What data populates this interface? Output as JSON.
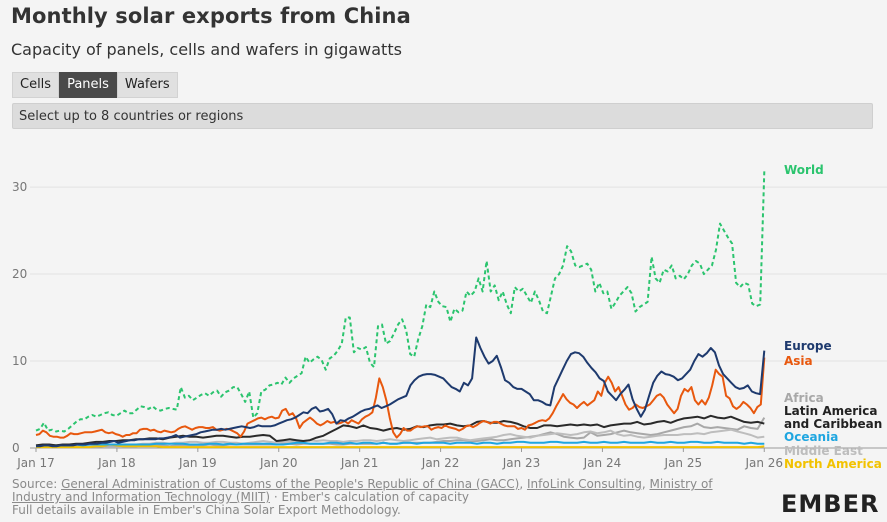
{
  "header": {
    "title": "Monthly solar exports from China",
    "subtitle": "Capacity of panels, cells and wafers in gigawatts"
  },
  "tabs": [
    {
      "label": "Cells",
      "active": false
    },
    {
      "label": "Panels",
      "active": true
    },
    {
      "label": "Wafers",
      "active": false
    }
  ],
  "selector": {
    "placeholder": "Select up to 8 countries or regions"
  },
  "footer": {
    "source_prefix": "Source: ",
    "link1": "General Administration of Customs of the People's Republic of China (GACC)",
    "sep1": ", ",
    "link2": "InfoLink Consulting",
    "sep2": ", ",
    "link3": "Ministry of Industry and Information Technology (MIIT)",
    "source_suffix": " · Ember's calculation of capacity",
    "details": "Full details available in Ember's China Solar Export Methodology.",
    "logo": "EMBER"
  },
  "chart_data": {
    "type": "line",
    "x_start": "Jan 17",
    "x_labels": [
      "Jan 17",
      "Jan 18",
      "Jan 19",
      "Jan 20",
      "Jan 21",
      "Jan 22",
      "Jan 23",
      "Jan 24",
      "Jan 25",
      "Jan 26"
    ],
    "x_label_index": [
      0,
      12,
      24,
      36,
      48,
      60,
      72,
      84,
      96,
      108
    ],
    "y_ticks": [
      0,
      10,
      20,
      30
    ],
    "ylim": [
      0,
      33
    ],
    "series": [
      {
        "name": "World",
        "color": "#2bc46e",
        "dashed": true,
        "label_lines": [
          "World"
        ],
        "values": [
          2.0,
          2.2,
          2.9,
          2.0,
          2.1,
          1.9,
          2.0,
          1.9,
          2.2,
          2.6,
          3.0,
          3.3,
          3.3,
          3.6,
          3.8,
          3.6,
          3.8,
          4.0,
          4.1,
          3.8,
          3.7,
          4.0,
          4.3,
          4.0,
          4.0,
          4.4,
          4.8,
          4.7,
          4.5,
          4.8,
          4.4,
          4.3,
          4.5,
          4.6,
          4.5,
          4.4,
          7.0,
          5.8,
          6.0,
          5.5,
          5.8,
          6.1,
          6.3,
          6.0,
          6.4,
          6.6,
          5.9,
          6.4,
          6.6,
          7.0,
          7.0,
          6.2,
          5.3,
          6.5,
          3.5,
          4.0,
          6.5,
          6.7,
          7.2,
          7.3,
          7.5,
          7.3,
          8.1,
          7.5,
          8.0,
          8.3,
          8.6,
          10.5,
          9.8,
          10.2,
          10.5,
          10.1,
          9.0,
          10.3,
          10.6,
          11.2,
          12.0,
          15.0,
          15.0,
          11.0,
          11.5,
          11.3,
          11.6,
          9.8,
          9.3,
          14.0,
          14.2,
          12.0,
          12.3,
          13.2,
          14.2,
          14.8,
          13.5,
          10.8,
          10.5,
          12.5,
          14.0,
          16.5,
          16.2,
          18.0,
          16.8,
          16.3,
          16.2,
          14.5,
          16.0,
          15.6,
          15.8,
          18.0,
          17.5,
          18.0,
          19.5,
          18.0,
          21.5,
          18.0,
          18.7,
          17.0,
          18.0,
          16.5,
          15.5,
          18.5,
          18.0,
          18.3,
          17.5,
          16.7,
          18.0,
          17.0,
          15.7,
          15.5,
          17.5,
          19.5,
          20.0,
          21.0,
          23.2,
          22.6,
          21.0,
          20.8,
          21.0,
          21.2,
          20.5,
          18.0,
          19.0,
          17.8,
          18.0,
          16.0,
          16.7,
          17.5,
          18.0,
          18.5,
          17.8,
          15.7,
          16.2,
          16.5,
          16.8,
          22.0,
          19.5,
          19.0,
          20.5,
          20.3,
          21.0,
          19.5,
          19.8,
          19.4,
          20.0,
          21.0,
          21.5,
          21.2,
          20.0,
          20.5,
          21.0,
          22.8,
          25.8,
          25.0,
          24.2,
          23.5,
          19.0,
          18.5,
          19.0,
          18.8,
          16.6,
          16.3,
          16.5,
          31.8
        ]
      },
      {
        "name": "Europe",
        "color": "#1e3a6e",
        "dashed": false,
        "label_lines": [
          "Europe"
        ],
        "values": [
          0.2,
          0.2,
          0.3,
          0.3,
          0.2,
          0.2,
          0.3,
          0.3,
          0.3,
          0.3,
          0.4,
          0.4,
          0.4,
          0.5,
          0.5,
          0.5,
          0.6,
          0.6,
          0.7,
          0.8,
          0.6,
          0.7,
          0.8,
          0.9,
          0.9,
          1.0,
          1.0,
          1.0,
          1.0,
          1.0,
          1.1,
          1.1,
          1.2,
          1.3,
          1.5,
          1.2,
          1.3,
          1.4,
          1.5,
          1.6,
          1.8,
          1.9,
          2.0,
          2.1,
          2.1,
          2.2,
          2.1,
          2.2,
          2.3,
          2.4,
          2.5,
          2.4,
          2.3,
          2.4,
          2.6,
          2.5,
          2.5,
          2.5,
          2.6,
          2.8,
          3.0,
          3.2,
          3.3,
          3.5,
          3.8,
          4.1,
          4.0,
          4.5,
          4.7,
          4.2,
          4.3,
          4.5,
          3.9,
          2.8,
          3.2,
          3.1,
          3.4,
          3.6,
          3.9,
          4.2,
          4.4,
          4.5,
          4.7,
          4.9,
          4.6,
          4.8,
          5.0,
          5.3,
          5.6,
          5.8,
          6.0,
          7.2,
          7.8,
          8.2,
          8.4,
          8.5,
          8.5,
          8.4,
          8.2,
          8.0,
          7.5,
          7.0,
          6.8,
          6.5,
          7.5,
          7.2,
          8.0,
          12.7,
          11.5,
          10.5,
          9.7,
          10.0,
          10.6,
          9.3,
          7.8,
          7.5,
          7.0,
          6.8,
          6.8,
          6.5,
          6.2,
          5.5,
          5.5,
          5.3,
          5.0,
          4.9,
          7.0,
          8.0,
          9.0,
          10.0,
          10.8,
          11.0,
          10.9,
          10.5,
          9.8,
          9.2,
          8.7,
          8.0,
          7.7,
          6.5,
          6.0,
          5.5,
          6.2,
          6.7,
          7.3,
          5.6,
          4.5,
          3.6,
          4.4,
          6.0,
          7.5,
          8.3,
          8.8,
          8.5,
          8.4,
          8.2,
          7.8,
          8.0,
          8.5,
          9.0,
          10.0,
          10.8,
          10.5,
          10.9,
          11.5,
          11.0,
          9.5,
          8.5,
          8.0,
          7.5,
          7.0,
          6.8,
          6.9,
          7.2,
          6.5,
          6.3,
          6.2,
          11.2
        ]
      },
      {
        "name": "Asia",
        "color": "#e8580e",
        "dashed": false,
        "label_lines": [
          "Asia"
        ],
        "values": [
          1.5,
          1.6,
          2.0,
          1.8,
          1.4,
          1.3,
          1.3,
          1.2,
          1.2,
          1.4,
          1.7,
          1.6,
          1.6,
          1.7,
          1.8,
          1.8,
          1.8,
          1.9,
          2.0,
          2.1,
          1.8,
          1.7,
          1.8,
          1.6,
          1.5,
          1.3,
          1.5,
          1.5,
          1.7,
          1.7,
          2.1,
          2.2,
          2.2,
          2.0,
          2.1,
          1.9,
          1.8,
          2.0,
          1.9,
          1.8,
          1.9,
          2.2,
          2.4,
          2.5,
          2.3,
          2.1,
          2.3,
          2.4,
          2.4,
          2.3,
          2.3,
          2.4,
          2.1,
          2.0,
          2.1,
          2.2,
          2.1,
          1.9,
          1.7,
          1.3,
          1.9,
          2.8,
          3.0,
          3.2,
          3.4,
          3.5,
          3.3,
          3.5,
          3.6,
          3.4,
          3.5,
          4.3,
          4.5,
          3.8,
          4.0,
          3.4,
          2.3,
          2.9,
          3.2,
          3.5,
          3.2,
          2.8,
          2.6,
          2.8,
          3.1,
          2.9,
          3.0,
          2.8,
          2.9,
          3.1,
          2.8,
          3.2,
          3.0,
          2.8,
          3.3,
          3.6,
          3.8,
          4.1,
          5.8,
          8.0,
          7.0,
          5.5,
          3.5,
          1.8,
          1.2,
          1.6,
          2.3,
          2.0,
          2.0,
          2.3,
          2.5,
          2.4,
          2.5,
          2.5,
          2.1,
          2.3,
          2.4,
          2.3,
          2.6,
          2.4,
          2.3,
          2.2,
          2.0,
          2.2,
          2.5,
          2.6,
          2.4,
          2.6,
          2.9,
          3.1,
          3.0,
          2.8,
          3.0,
          3.0,
          2.8,
          2.6,
          2.5,
          2.5,
          2.5,
          2.2,
          2.3,
          2.1,
          2.6,
          2.7,
          2.9,
          3.1,
          3.2,
          3.1,
          3.4,
          4.0,
          4.8,
          5.5,
          6.2,
          5.6,
          5.2,
          5.0,
          4.6,
          5.0,
          5.3,
          4.9,
          5.2,
          5.5,
          6.5,
          6.0,
          7.5,
          8.2,
          7.5,
          6.5,
          7.0,
          6.0,
          5.0,
          4.4,
          4.6,
          5.0,
          4.7,
          4.6,
          4.8,
          5.0,
          5.5,
          6.0,
          6.2,
          5.8,
          5.0,
          4.5,
          4.0,
          4.5,
          6.0,
          6.8,
          6.5,
          7.0,
          5.5,
          5.0,
          5.5,
          5.0,
          5.8,
          7.2,
          9.0,
          8.5,
          8.2,
          6.0,
          5.7,
          4.8,
          4.5,
          4.8,
          5.3,
          5.0,
          4.6,
          4.0,
          4.7,
          5.0,
          10.4
        ]
      },
      {
        "name": "Africa",
        "color": "#a8a8a8",
        "dashed": false,
        "label_lines": [
          "Africa"
        ],
        "values": [
          0.1,
          0.1,
          0.1,
          0.2,
          0.2,
          0.2,
          0.1,
          0.1,
          0.2,
          0.1,
          0.2,
          0.2,
          0.2,
          0.2,
          0.2,
          0.2,
          0.3,
          0.3,
          0.3,
          0.3,
          0.2,
          0.3,
          0.3,
          0.3,
          0.3,
          0.3,
          0.4,
          0.3,
          0.3,
          0.4,
          0.4,
          0.4,
          0.4,
          0.4,
          0.4,
          0.4,
          0.4,
          0.5,
          0.5,
          0.4,
          0.5,
          0.5,
          0.5,
          0.5,
          0.5,
          0.4,
          0.4,
          0.5,
          0.5,
          0.5,
          0.5,
          0.5,
          0.6,
          0.5,
          0.5,
          0.6,
          0.6,
          0.6,
          0.6,
          0.6,
          0.7,
          0.8,
          0.8,
          0.9,
          0.9,
          0.8,
          0.8,
          0.9,
          1.0,
          0.9,
          0.9,
          1.0,
          1.1,
          1.2,
          1.3,
          1.4,
          1.6,
          1.8,
          1.6,
          1.3,
          1.2,
          1.1,
          1.2,
          1.8,
          1.4,
          1.5,
          1.6,
          1.8,
          2.0,
          1.8,
          1.7,
          1.6,
          1.5,
          1.6,
          1.8,
          2.0,
          2.2,
          2.4,
          2.5,
          2.8,
          2.4,
          2.3,
          2.4,
          2.3,
          2.2,
          2.1,
          2.5,
          2.3,
          2.2,
          3.5
        ]
      },
      {
        "name": "Latin America and Caribbean",
        "color": "#2a2a2a",
        "dashed": false,
        "label_lines": [
          "Latin America",
          "and Caribbean"
        ],
        "values": [
          0.3,
          0.4,
          0.4,
          0.3,
          0.4,
          0.4,
          0.5,
          0.5,
          0.6,
          0.7,
          0.7,
          0.8,
          0.8,
          0.9,
          0.9,
          1.0,
          1.0,
          1.1,
          1.1,
          1.0,
          1.2,
          1.3,
          1.4,
          1.3,
          1.3,
          1.2,
          1.3,
          1.4,
          1.4,
          1.3,
          1.2,
          1.3,
          1.3,
          1.4,
          1.5,
          1.4,
          0.8,
          0.9,
          1.0,
          0.9,
          0.8,
          0.9,
          1.2,
          1.4,
          1.8,
          2.2,
          2.6,
          2.5,
          2.3,
          2.6,
          2.3,
          2.2,
          2.0,
          2.2,
          2.3,
          2.1,
          2.2,
          2.5,
          2.4,
          2.6,
          2.7,
          2.7,
          2.8,
          2.6,
          2.5,
          2.6,
          3.0,
          3.1,
          2.9,
          2.9,
          3.1,
          3.0,
          2.8,
          2.5,
          2.3,
          2.3,
          2.6,
          2.6,
          2.5,
          2.6,
          2.7,
          2.6,
          2.7,
          2.6,
          2.7,
          2.4,
          2.6,
          2.7,
          2.8,
          2.8,
          3.0,
          2.7,
          2.8,
          3.0,
          3.1,
          2.9,
          3.2,
          3.4,
          3.5,
          3.6,
          3.4,
          3.7,
          3.5,
          3.4,
          3.6,
          3.3,
          3.0,
          2.9,
          3.0,
          2.8
        ]
      },
      {
        "name": "Oceania",
        "color": "#1fa6e0",
        "dashed": false,
        "label_lines": [
          "Oceania"
        ],
        "values": [
          0.2,
          0.3,
          0.3,
          0.3,
          0.3,
          0.3,
          0.4,
          0.3,
          0.4,
          0.4,
          0.4,
          0.4,
          0.4,
          0.4,
          0.4,
          0.4,
          0.4,
          0.4,
          0.5,
          0.5,
          0.5,
          0.5,
          0.5,
          0.4,
          0.4,
          0.4,
          0.5,
          0.5,
          0.4,
          0.5,
          0.4,
          0.5,
          0.5,
          0.5,
          0.5,
          0.5,
          0.4,
          0.4,
          0.5,
          0.6,
          0.6,
          0.5,
          0.5,
          0.5,
          0.6,
          0.6,
          0.5,
          0.6,
          0.5,
          0.6,
          0.6,
          0.5,
          0.6,
          0.5,
          0.5,
          0.6,
          0.6,
          0.5,
          0.6,
          0.6,
          0.6,
          0.6,
          0.5,
          0.6,
          0.6,
          0.6,
          0.5,
          0.6,
          0.6,
          0.5,
          0.6,
          0.6,
          0.7,
          0.7,
          0.6,
          0.6,
          0.6,
          0.7,
          0.7,
          0.6,
          0.6,
          0.6,
          0.7,
          0.6,
          0.6,
          0.7,
          0.6,
          0.6,
          0.7,
          0.6,
          0.6,
          0.6,
          0.7,
          0.6,
          0.6,
          0.7,
          0.6,
          0.6,
          0.7,
          0.7,
          0.6,
          0.6,
          0.7,
          0.6,
          0.6,
          0.6,
          0.5,
          0.6,
          0.5,
          0.5
        ]
      },
      {
        "name": "Middle East",
        "color": "#bdbdbd",
        "dashed": false,
        "label_lines": [
          "Middle East"
        ],
        "values": [
          0.3,
          0.3,
          0.3,
          0.3,
          0.3,
          0.3,
          0.3,
          0.3,
          0.3,
          0.3,
          0.3,
          0.3,
          0.3,
          0.4,
          0.4,
          0.4,
          0.5,
          0.5,
          0.6,
          0.6,
          0.5,
          0.6,
          0.6,
          0.7,
          0.7,
          0.6,
          0.6,
          0.7,
          0.7,
          0.6,
          0.6,
          0.5,
          0.6,
          0.7,
          0.8,
          0.7,
          0.6,
          0.7,
          0.7,
          0.8,
          0.8,
          0.9,
          0.8,
          0.9,
          0.8,
          0.8,
          0.7,
          0.8,
          0.8,
          0.9,
          0.9,
          0.8,
          0.9,
          1.0,
          0.9,
          0.8,
          0.9,
          1.0,
          1.1,
          1.2,
          1.0,
          1.1,
          1.2,
          1.2,
          1.0,
          0.9,
          1.0,
          1.1,
          1.2,
          1.3,
          1.5,
          1.6,
          1.4,
          1.3,
          1.2,
          1.4,
          1.5,
          1.6,
          1.7,
          1.6,
          1.5,
          1.6,
          1.8,
          1.9,
          1.7,
          1.8,
          2.0,
          1.6,
          1.4,
          1.5,
          1.3,
          1.2,
          1.3,
          1.4,
          1.5,
          1.5,
          1.5,
          1.6,
          1.6,
          1.7,
          1.6,
          1.8,
          1.9,
          2.0,
          2.1,
          1.9,
          1.7,
          1.5,
          1.2,
          1.3
        ]
      },
      {
        "name": "North America",
        "color": "#f2c200",
        "dashed": false,
        "label_lines": [
          "North America"
        ],
        "values": [
          0.1,
          0.1,
          0.1,
          0.1,
          0.1,
          0.1,
          0.1,
          0.1,
          0.1,
          0.2,
          0.2,
          0.4,
          0.3,
          0.2,
          0.2,
          0.2,
          0.2,
          0.2,
          0.2,
          0.1,
          0.1,
          0.1,
          0.1,
          0.1,
          0.1,
          0.1,
          0.1,
          0.1,
          0.1,
          0.1,
          0.1,
          0.1,
          0.1,
          0.1,
          0.1,
          0.1,
          0.1,
          0.1,
          0.1,
          0.1,
          0.1,
          0.1,
          0.1,
          0.1,
          0.1,
          0.1,
          0.1,
          0.1,
          0.1,
          0.1,
          0.1,
          0.1,
          0.1,
          0.1,
          0.1,
          0.1,
          0.1,
          0.1,
          0.1,
          0.1,
          0.1,
          0.1,
          0.1,
          0.1,
          0.1,
          0.1,
          0.1,
          0.1,
          0.1,
          0.1,
          0.1,
          0.1,
          0.1,
          0.1,
          0.1,
          0.1,
          0.1,
          0.1,
          0.1,
          0.1,
          0.1,
          0.1,
          0.1,
          0.1,
          0.1,
          0.1,
          0.1,
          0.1,
          0.1,
          0.1,
          0.1,
          0.1,
          0.1,
          0.1,
          0.1,
          0.1,
          0.1,
          0.1,
          0.1,
          0.1,
          0.1,
          0.1,
          0.1,
          0.1,
          0.1,
          0.1,
          0.1,
          0.1,
          0.1,
          0.2
        ]
      }
    ]
  }
}
